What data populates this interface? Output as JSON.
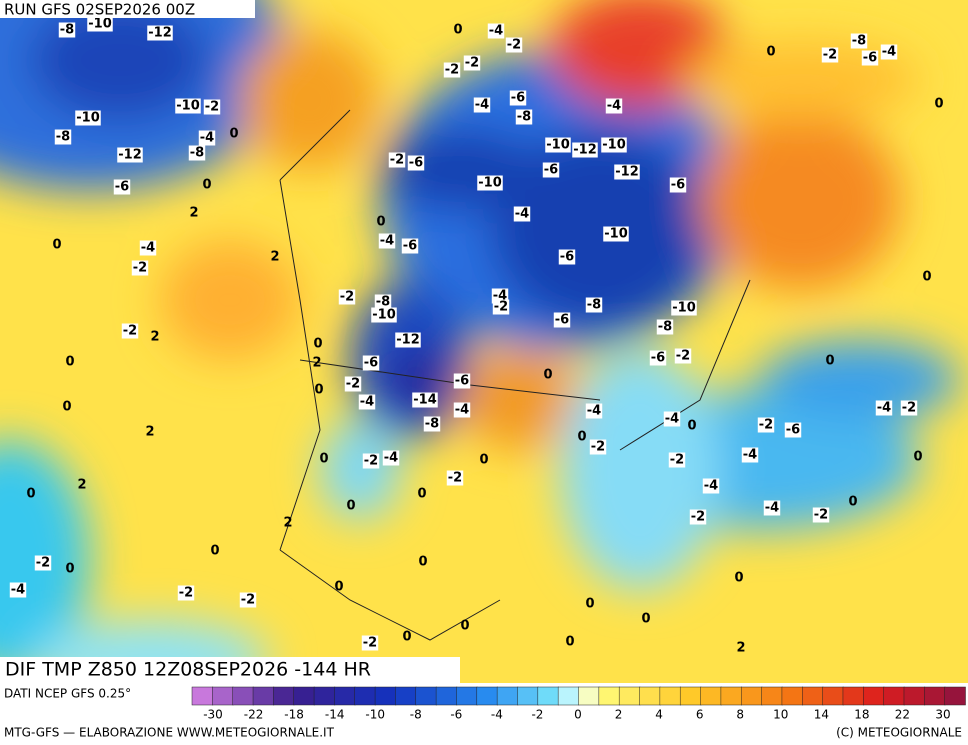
{
  "header": {
    "run": "RUN GFS 02SEP2026 00Z"
  },
  "title": "DIF TMP Z850 12Z08SEP2026 -144 HR",
  "source": "DATI NCEP GFS 0.25°",
  "colorbar": {
    "labels": [
      -30,
      -22,
      -18,
      -14,
      -10,
      -8,
      -6,
      -4,
      -2,
      0,
      2,
      4,
      6,
      8,
      10,
      14,
      18,
      22,
      30
    ]
  },
  "footer": {
    "left": "MTG-GFS — ELABORAZIONE WWW.METEOGIORNALE.IT",
    "right": "(C) METEOGIORNALE"
  },
  "map_labels": [
    -8,
    -10,
    -12,
    -10,
    -2,
    -10,
    -8,
    -12,
    -8,
    -4,
    0,
    -6,
    0,
    2,
    0,
    -4,
    -2,
    2,
    -2,
    2,
    0,
    0,
    2,
    0,
    2,
    -2,
    0,
    -4,
    -2,
    -2,
    0,
    -4,
    -2,
    0,
    -2,
    -2,
    -4,
    -6,
    -8,
    -4,
    -10,
    -12,
    -10,
    -12,
    -6,
    -6,
    -10,
    -4,
    -2,
    -6,
    0,
    -4,
    -6,
    -10,
    -6,
    -4,
    -2,
    -8,
    -6,
    -10,
    -8,
    -6,
    -2,
    -2,
    -8,
    -10,
    -12,
    -6,
    -2,
    -4,
    -14,
    -8,
    -6,
    -4,
    0,
    -4,
    0,
    -2,
    -4,
    0,
    -2,
    -6,
    -4,
    -2,
    0,
    0,
    0,
    0,
    -2,
    -8,
    -6,
    -4,
    0,
    -4,
    -2,
    -4,
    -4,
    -2,
    0,
    -2,
    0,
    -2,
    -4,
    0,
    -2,
    0,
    0,
    0,
    0,
    0,
    0,
    -2,
    0,
    0,
    0,
    0,
    2,
    2,
    0,
    2,
    0
  ]
}
